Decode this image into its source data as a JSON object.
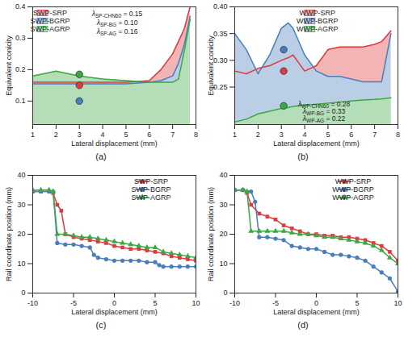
{
  "chart_data": [
    {
      "type": "area",
      "caption": "(a)",
      "x_label": "Lateral displacement (mm)",
      "y_label": "Equivalent conicity",
      "xlim": [
        1,
        8
      ],
      "xticks": [
        1,
        2,
        3,
        4,
        5,
        6,
        7,
        8
      ],
      "ylim": [
        0.025,
        0.4
      ],
      "yticks": [
        0.1,
        0.2,
        0.3,
        0.4
      ],
      "legend": "upper left",
      "x": [
        1,
        2,
        3,
        4,
        5,
        6,
        6.5,
        7,
        7.25,
        7.5,
        7.75
      ],
      "series": [
        {
          "name": "SWP-SRP",
          "color": "#e0393e",
          "values": [
            0.16,
            0.16,
            0.16,
            0.16,
            0.16,
            0.165,
            0.2,
            0.25,
            0.29,
            0.33,
            0.4
          ]
        },
        {
          "name": "SWP-BGRP",
          "color": "#4a7ebb",
          "values": [
            0.155,
            0.155,
            0.155,
            0.155,
            0.155,
            0.16,
            0.165,
            0.18,
            0.22,
            0.28,
            0.37
          ]
        },
        {
          "name": "SWP-AGRP",
          "color": "#3aa845",
          "values": [
            0.18,
            0.195,
            0.18,
            0.17,
            0.165,
            0.16,
            0.16,
            0.16,
            0.17,
            0.26,
            0.36
          ]
        }
      ],
      "dots": [
        {
          "x": 3,
          "y": 0.185,
          "color": "#3aa845"
        },
        {
          "x": 3,
          "y": 0.15,
          "color": "#e0393e"
        },
        {
          "x": 3,
          "y": 0.1,
          "color": "#4a7ebb"
        }
      ],
      "annotations": [
        {
          "symbol": "λ",
          "subscript": "SP-CHN60",
          "text": " = 0.15"
        },
        {
          "symbol": "λ",
          "subscript": "SP-BG",
          "text": " = 0.10"
        },
        {
          "symbol": "λ",
          "subscript": "SP-AG",
          "text": " = 0.16"
        }
      ]
    },
    {
      "type": "area",
      "caption": "(b)",
      "x_label": "Lateral displacement (mm)",
      "y_label": "Equivalent conicity",
      "xlim": [
        1,
        8
      ],
      "xticks": [
        1,
        2,
        3,
        4,
        5,
        6,
        7,
        8
      ],
      "ylim": [
        0.18,
        0.4
      ],
      "yticks": [
        0.25,
        {
          "value": 0.3,
          "label": "0.30"
        },
        0.35,
        {
          "value": 0.4,
          "label": "0.40"
        }
      ],
      "legend": "upper center",
      "x": [
        1,
        1.5,
        2,
        2.5,
        3,
        3.3,
        3.5,
        4,
        4.5,
        5,
        5.5,
        6,
        6.5,
        7,
        7.3,
        7.7
      ],
      "series": [
        {
          "name": "WWP-SRP",
          "color": "#e0393e",
          "values": [
            0.28,
            0.275,
            0.285,
            0.29,
            0.3,
            0.305,
            0.31,
            0.28,
            0.29,
            0.32,
            0.325,
            0.325,
            0.325,
            0.33,
            0.335,
            0.355
          ]
        },
        {
          "name": "WWP-BGRP",
          "color": "#4a7ebb",
          "values": [
            0.35,
            0.32,
            0.275,
            0.31,
            0.36,
            0.37,
            0.36,
            0.31,
            0.28,
            0.27,
            0.27,
            0.265,
            0.26,
            0.26,
            0.26,
            0.35
          ]
        },
        {
          "name": "WWP-AGRP",
          "color": "#3aa845",
          "values": [
            0.185,
            0.19,
            0.2,
            0.205,
            0.21,
            0.212,
            0.214,
            0.216,
            0.218,
            0.22,
            0.222,
            0.224,
            0.226,
            0.227,
            0.228,
            0.23
          ]
        }
      ],
      "dots": [
        {
          "x": 3.1,
          "y": 0.32,
          "color": "#4a7ebb"
        },
        {
          "x": 3.1,
          "y": 0.28,
          "color": "#e0393e"
        },
        {
          "x": 3.1,
          "y": 0.215,
          "color": "#3aa845"
        }
      ],
      "annotations": [
        {
          "symbol": "λ",
          "subscript": "WP-CHN60",
          "text": " = 0.28"
        },
        {
          "symbol": "λ",
          "subscript": "WP-BG",
          "text": " = 0.33"
        },
        {
          "symbol": "λ",
          "subscript": "WP-AG",
          "text": " = 0.22"
        }
      ]
    },
    {
      "type": "line",
      "caption": "(c)",
      "x_label": "Lateral displacement (mm)",
      "y_label": "Rail coordinate position (mm)",
      "xlim": [
        -10,
        10
      ],
      "xticks": [
        -10,
        -5,
        0,
        5,
        10
      ],
      "ylim": [
        0,
        40
      ],
      "yticks": [
        0,
        10,
        20,
        30,
        40
      ],
      "legend": "upper right",
      "series": [
        {
          "name": "SWP-SRP",
          "color": "#e0393e",
          "marker": "square",
          "x": [
            -10,
            -9,
            -8,
            -7.5,
            -7,
            -6.5,
            -6,
            -5,
            -4,
            -3,
            -2,
            -1,
            0,
            1,
            2,
            3,
            4,
            5,
            6,
            7,
            8,
            9,
            10
          ],
          "values": [
            34.5,
            34.5,
            34.5,
            34,
            30,
            28,
            20,
            19,
            18.5,
            18,
            17.5,
            17,
            16,
            15.5,
            15,
            15,
            14.5,
            14,
            13.5,
            12.5,
            12,
            11.5,
            11
          ]
        },
        {
          "name": "SWP-BGRP",
          "color": "#4a7ebb",
          "marker": "circle",
          "x": [
            -10,
            -9,
            -8,
            -7.5,
            -7,
            -6,
            -5,
            -4,
            -3,
            -2.5,
            -2,
            -1,
            0,
            1,
            2,
            3,
            4,
            5,
            5.5,
            6,
            7,
            8,
            9,
            10
          ],
          "values": [
            34.5,
            34.5,
            34.5,
            34.5,
            17,
            16.5,
            16.5,
            16,
            15.5,
            13,
            12,
            11.5,
            11,
            11,
            11,
            11,
            10.5,
            10.5,
            9.5,
            9,
            9,
            9,
            9,
            9
          ]
        },
        {
          "name": "SWP-AGRP",
          "color": "#3aa845",
          "marker": "triangle",
          "x": [
            -10,
            -9,
            -8,
            -7.5,
            -7,
            -6,
            -5,
            -4,
            -3,
            -2,
            -1,
            0,
            1,
            2,
            3,
            4,
            5,
            6,
            7,
            8,
            9,
            10
          ],
          "values": [
            35,
            35,
            35,
            34.5,
            20,
            20,
            19.5,
            19,
            19,
            18.5,
            18,
            17.5,
            17,
            16.5,
            16,
            15.5,
            15.5,
            14,
            13.5,
            13,
            12.5,
            12
          ]
        }
      ]
    },
    {
      "type": "line",
      "caption": "(d)",
      "x_label": "Lateral displacement (mm)",
      "y_label": "Rail coordinate position (mm)",
      "xlim": [
        -10,
        10
      ],
      "xticks": [
        -10,
        -5,
        0,
        5,
        10
      ],
      "ylim": [
        0,
        40
      ],
      "yticks": [
        0,
        10,
        20,
        30,
        40
      ],
      "legend": "upper right",
      "series": [
        {
          "name": "WWP-SRP",
          "color": "#e0393e",
          "marker": "square",
          "x": [
            -10,
            -9,
            -8.5,
            -8,
            -7,
            -6,
            -5,
            -4,
            -3,
            -2,
            -1,
            0,
            1,
            2,
            3,
            4,
            5,
            6,
            7,
            8,
            9,
            10
          ],
          "values": [
            35,
            35,
            34,
            30,
            27,
            26,
            25,
            23,
            22,
            21,
            20,
            20,
            19.5,
            19.5,
            19,
            19,
            18.5,
            18,
            17,
            16,
            14,
            11
          ]
        },
        {
          "name": "WWP-BGRP",
          "color": "#4a7ebb",
          "marker": "circle",
          "x": [
            -10,
            -9,
            -8,
            -7.5,
            -7,
            -6,
            -5,
            -4,
            -3,
            -2,
            -1,
            0,
            1,
            2,
            3,
            4,
            5,
            6,
            7,
            8,
            9,
            10
          ],
          "values": [
            35,
            35,
            34.5,
            31,
            19,
            19,
            18.5,
            18,
            16,
            15.5,
            15,
            15,
            14,
            13,
            13,
            12.5,
            12,
            11,
            9,
            7,
            5,
            0.5
          ]
        },
        {
          "name": "WWP-AGRP",
          "color": "#3aa845",
          "marker": "triangle",
          "x": [
            -10,
            -9,
            -8.5,
            -8,
            -7,
            -6,
            -5,
            -4,
            -3,
            -2,
            -1,
            0,
            1,
            2,
            3,
            4,
            5,
            6,
            7,
            8,
            9,
            10
          ],
          "values": [
            35,
            35,
            34.5,
            21,
            21,
            21,
            21,
            21,
            20.5,
            20,
            20,
            19.5,
            19,
            19,
            18.5,
            18,
            17.5,
            17,
            16,
            14.5,
            12,
            10
          ]
        }
      ]
    }
  ]
}
